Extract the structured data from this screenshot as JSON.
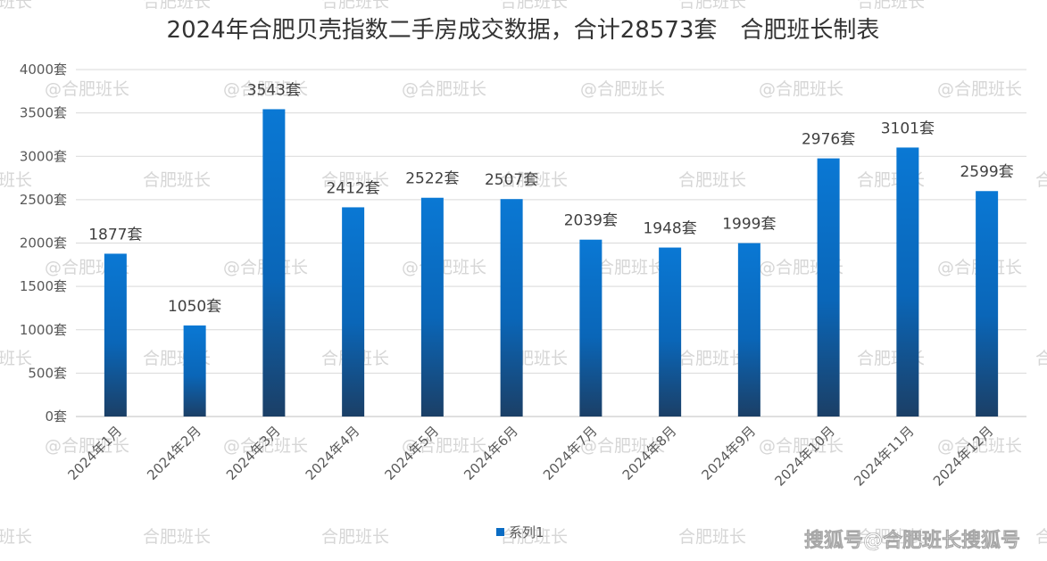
{
  "chart_data": {
    "type": "bar",
    "title": "2024年合肥贝壳指数二手房成交数据，合计28573套　合肥班长制表",
    "categories": [
      "2024年1月",
      "2024年2月",
      "2024年3月",
      "2024年4月",
      "2024年5月",
      "2024年6月",
      "2024年7月",
      "2024年8月",
      "2024年9月",
      "2024年10月",
      "2024年11月",
      "2024年12月"
    ],
    "series": [
      {
        "name": "系列1",
        "values": [
          1877,
          1050,
          3543,
          2412,
          2522,
          2507,
          2039,
          1948,
          1999,
          2976,
          3101,
          2599
        ]
      }
    ],
    "data_labels": [
      "1877套",
      "1050套",
      "3543套",
      "2412套",
      "2522套",
      "2507套",
      "2039套",
      "1948套",
      "1999套",
      "2976套",
      "3101套",
      "2599套"
    ],
    "y_ticks": [
      "0套",
      "500套",
      "1000套",
      "1500套",
      "2000套",
      "2500套",
      "3000套",
      "3500套",
      "4000套"
    ],
    "ylim": [
      0,
      4000
    ],
    "xlabel": "",
    "ylabel": "",
    "grid": true,
    "legend": "bottom",
    "colors": {
      "bar_top": "#0a78d4",
      "bar_bottom": "#1b3f66",
      "grid": "#d9d9d9"
    }
  },
  "watermark": {
    "text": "@合肥班长",
    "text_plain": "合肥班长"
  },
  "source_badge": "搜狐号@合肥班长搜狐号"
}
